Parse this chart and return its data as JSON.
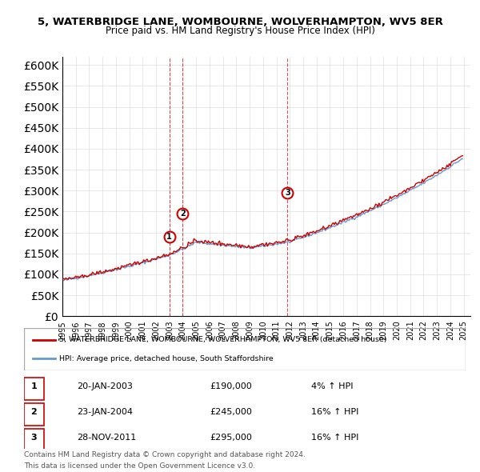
{
  "title": "5, WATERBRIDGE LANE, WOMBOURNE, WOLVERHAMPTON, WV5 8ER",
  "subtitle": "Price paid vs. HM Land Registry's House Price Index (HPI)",
  "red_label": "5, WATERBRIDGE LANE, WOMBOURNE, WOLVERHAMPTON, WV5 8ER (detached house)",
  "blue_label": "HPI: Average price, detached house, South Staffordshire",
  "transactions": [
    {
      "num": 1,
      "date": "20-JAN-2003",
      "price": 190000,
      "pct": "4%",
      "dir": "↑"
    },
    {
      "num": 2,
      "date": "23-JAN-2004",
      "price": 245000,
      "pct": "16%",
      "dir": "↑"
    },
    {
      "num": 3,
      "date": "28-NOV-2011",
      "price": 295000,
      "pct": "16%",
      "dir": "↑"
    }
  ],
  "footnote1": "Contains HM Land Registry data © Crown copyright and database right 2024.",
  "footnote2": "This data is licensed under the Open Government Licence v3.0.",
  "red_color": "#cc0000",
  "blue_color": "#6699cc",
  "vline_color": "#cc0000",
  "ylim": [
    0,
    620000
  ],
  "yticks": [
    0,
    50000,
    100000,
    150000,
    200000,
    250000,
    300000,
    350000,
    400000,
    450000,
    500000,
    550000,
    600000
  ],
  "background_color": "#ffffff",
  "grid_color": "#dddddd"
}
